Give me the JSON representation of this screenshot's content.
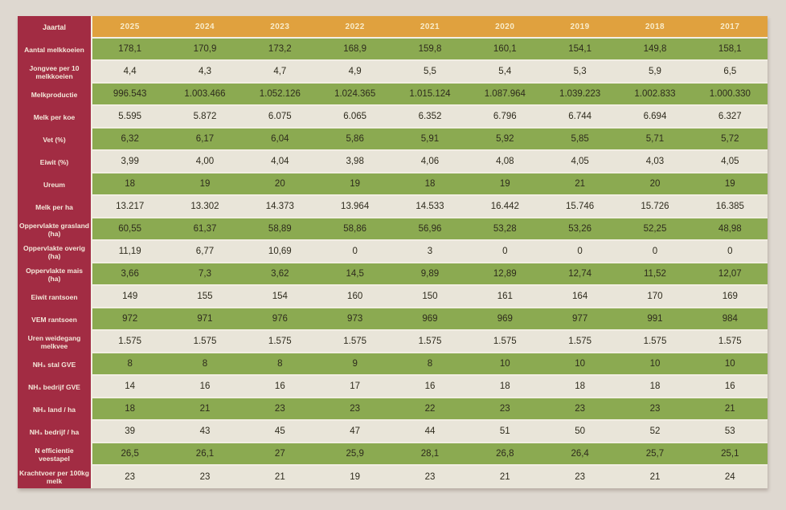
{
  "colors": {
    "page_bg": "#ded8d0",
    "label_bg": "#a22c43",
    "header_bg": "#e0a13e",
    "row_green": "#8baa51",
    "row_cream": "#e9e5d9",
    "separator": "#f2eee3",
    "label_text": "#f4e8da",
    "header_text": "#f8eccb",
    "value_text": "#2e2b1d"
  },
  "chart_data": {
    "type": "table",
    "corner_label": "Jaartal",
    "columns": [
      "2025",
      "2024",
      "2023",
      "2022",
      "2021",
      "2020",
      "2019",
      "2018",
      "2017"
    ],
    "rows": [
      {
        "label": "Aantal melkkoeien",
        "values": [
          "178,1",
          "170,9",
          "173,2",
          "168,9",
          "159,8",
          "160,1",
          "154,1",
          "149,8",
          "158,1"
        ]
      },
      {
        "label": "Jongvee per 10 melkkoeien",
        "values": [
          "4,4",
          "4,3",
          "4,7",
          "4,9",
          "5,5",
          "5,4",
          "5,3",
          "5,9",
          "6,5"
        ]
      },
      {
        "label": "Melkproductie",
        "values": [
          "996.543",
          "1.003.466",
          "1.052.126",
          "1.024.365",
          "1.015.124",
          "1.087.964",
          "1.039.223",
          "1.002.833",
          "1.000.330"
        ]
      },
      {
        "label": "Melk per koe",
        "values": [
          "5.595",
          "5.872",
          "6.075",
          "6.065",
          "6.352",
          "6.796",
          "6.744",
          "6.694",
          "6.327"
        ]
      },
      {
        "label": "Vet (%)",
        "values": [
          "6,32",
          "6,17",
          "6,04",
          "5,86",
          "5,91",
          "5,92",
          "5,85",
          "5,71",
          "5,72"
        ]
      },
      {
        "label": "Eiwit (%)",
        "values": [
          "3,99",
          "4,00",
          "4,04",
          "3,98",
          "4,06",
          "4,08",
          "4,05",
          "4,03",
          "4,05"
        ]
      },
      {
        "label": "Ureum",
        "values": [
          "18",
          "19",
          "20",
          "19",
          "18",
          "19",
          "21",
          "20",
          "19"
        ]
      },
      {
        "label": "Melk per ha",
        "values": [
          "13.217",
          "13.302",
          "14.373",
          "13.964",
          "14.533",
          "16.442",
          "15.746",
          "15.726",
          "16.385"
        ]
      },
      {
        "label": "Oppervlakte grasland (ha)",
        "values": [
          "60,55",
          "61,37",
          "58,89",
          "58,86",
          "56,96",
          "53,28",
          "53,26",
          "52,25",
          "48,98"
        ]
      },
      {
        "label": "Oppervlakte overig (ha)",
        "values": [
          "11,19",
          "6,77",
          "10,69",
          "0",
          "3",
          "0",
          "0",
          "0",
          "0"
        ]
      },
      {
        "label": "Oppervlakte mais (ha)",
        "values": [
          "3,66",
          "7,3",
          "3,62",
          "14,5",
          "9,89",
          "12,89",
          "12,74",
          "11,52",
          "12,07"
        ]
      },
      {
        "label": "Eiwit rantsoen",
        "values": [
          "149",
          "155",
          "154",
          "160",
          "150",
          "161",
          "164",
          "170",
          "169"
        ]
      },
      {
        "label": "VEM rantsoen",
        "values": [
          "972",
          "971",
          "976",
          "973",
          "969",
          "969",
          "977",
          "991",
          "984"
        ]
      },
      {
        "label": "Uren weidegang melkvee",
        "values": [
          "1.575",
          "1.575",
          "1.575",
          "1.575",
          "1.575",
          "1.575",
          "1.575",
          "1.575",
          "1.575"
        ]
      },
      {
        "label": "NH₃ stal GVE",
        "values": [
          "8",
          "8",
          "8",
          "9",
          "8",
          "10",
          "10",
          "10",
          "10"
        ]
      },
      {
        "label": "NH₃ bedrijf GVE",
        "values": [
          "14",
          "16",
          "16",
          "17",
          "16",
          "18",
          "18",
          "18",
          "16"
        ]
      },
      {
        "label": "NH₃ land / ha",
        "values": [
          "18",
          "21",
          "23",
          "23",
          "22",
          "23",
          "23",
          "23",
          "21"
        ]
      },
      {
        "label": "NH₃ bedrijf / ha",
        "values": [
          "39",
          "43",
          "45",
          "47",
          "44",
          "51",
          "50",
          "52",
          "53"
        ]
      },
      {
        "label": "N efficientie veestapel",
        "values": [
          "26,5",
          "26,1",
          "27",
          "25,9",
          "28,1",
          "26,8",
          "26,4",
          "25,7",
          "25,1"
        ]
      },
      {
        "label": "Krachtvoer per 100kg melk",
        "values": [
          "23",
          "23",
          "21",
          "19",
          "23",
          "21",
          "23",
          "21",
          "24"
        ]
      }
    ]
  }
}
